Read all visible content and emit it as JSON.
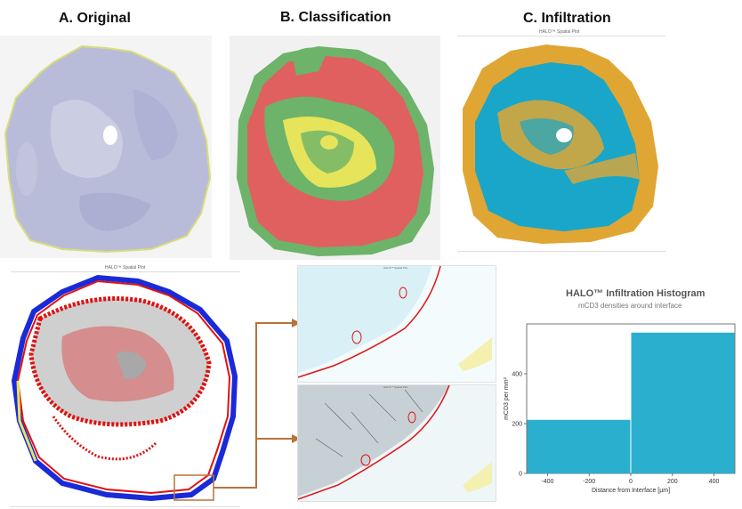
{
  "headings": {
    "original": "A. Original",
    "classification": "B. Classification",
    "infiltration": "C. Infiltration"
  },
  "spatial_plot_title": "HALO™ Spatial Plot",
  "histogram": {
    "title": "HALO™ Infiltration Histogram",
    "subtitle": "mCD3 densities around interface"
  },
  "colors": {
    "tissue_stain": "#b9bcd9",
    "tissue_border": "#d8dd7a",
    "class_red": "#e06060",
    "class_green": "#6db36a",
    "class_yellow": "#e6e45a",
    "infil_blue": "#1aa6c8",
    "infil_orange": "#e0a634",
    "marker_red": "#e01010",
    "marker_blue": "#1a2ad8",
    "marker_grey": "#a8a8a8",
    "arrow": "#b8733a",
    "bar": "#2aafce"
  },
  "chart_data": {
    "type": "bar",
    "title": "HALO™ Infiltration Histogram",
    "subtitle": "mCD3 densities around interface",
    "xlabel": "Distance from Interface [µm]",
    "ylabel": "mCD3 per mm²",
    "bins": [
      {
        "x0": -500,
        "x1": 0,
        "value": 215
      },
      {
        "x0": 0,
        "x1": 500,
        "value": 565
      }
    ],
    "xlim": [
      -500,
      500
    ],
    "ylim": [
      0,
      600
    ],
    "xticks": [
      "-400",
      "-200",
      "0",
      "200",
      "400"
    ],
    "yticks": [
      "0",
      "200",
      "400"
    ],
    "grid": false
  }
}
